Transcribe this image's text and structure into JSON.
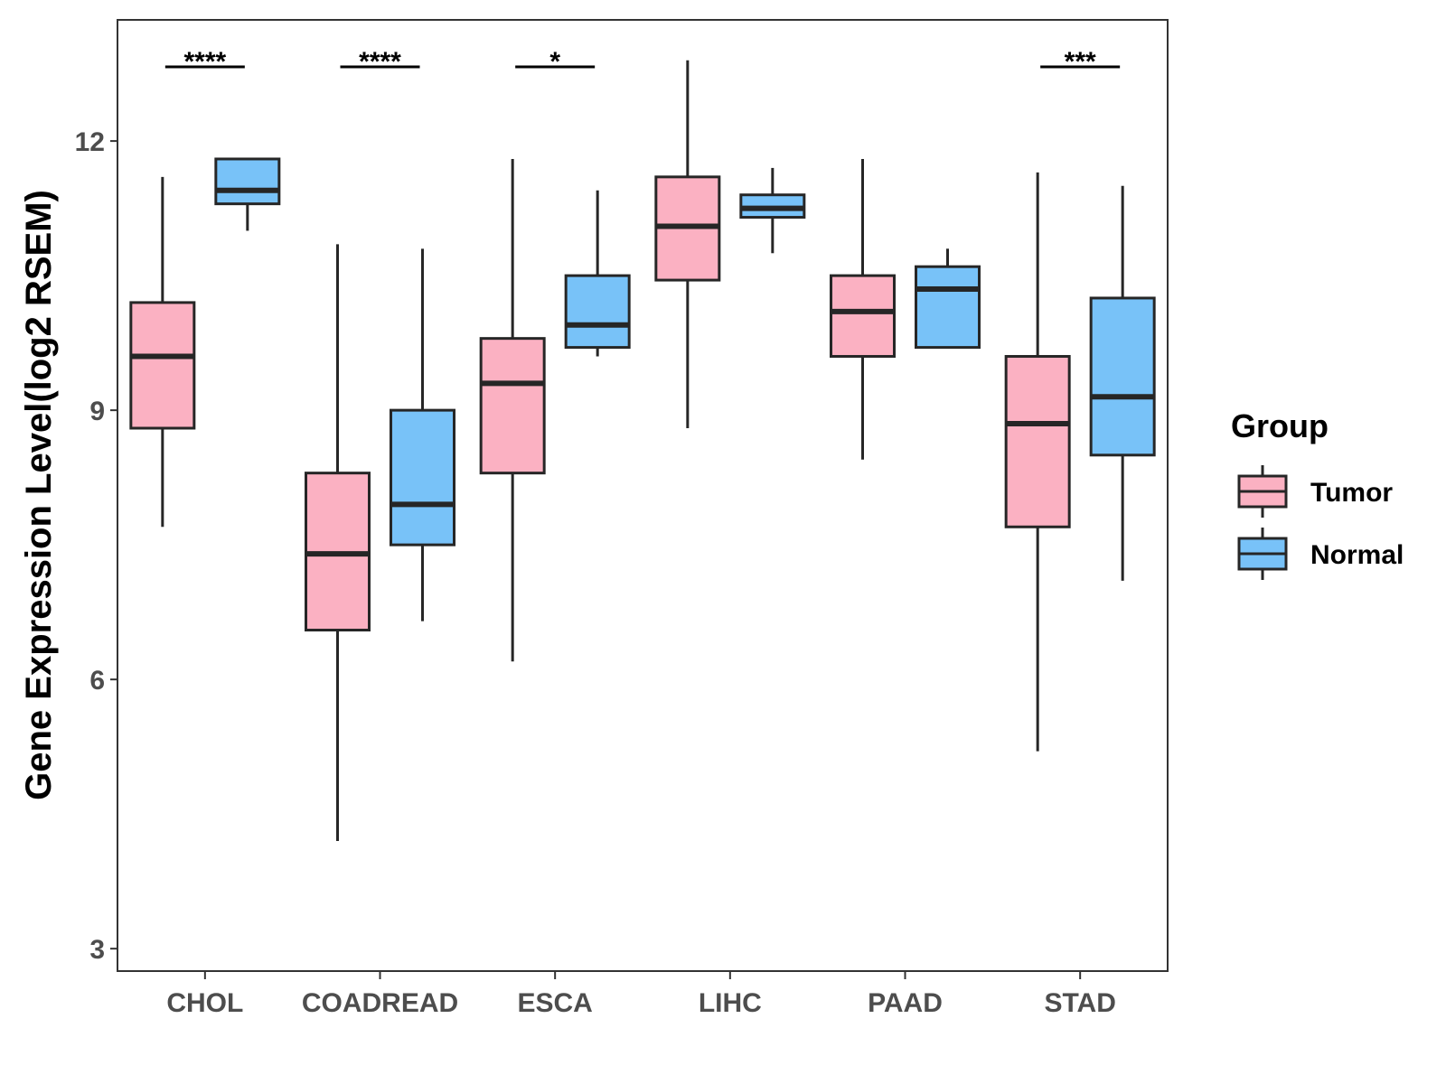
{
  "chart_data": {
    "type": "boxplot",
    "ylabel": "Gene Expression Level(log2 RSEM)",
    "xlabel": "",
    "ylim": [
      2.75,
      13.35
    ],
    "yticks": [
      3,
      6,
      9,
      12
    ],
    "categories": [
      "CHOL",
      "COADREAD",
      "ESCA",
      "LIHC",
      "PAAD",
      "STAD"
    ],
    "groups": [
      {
        "name": "Tumor",
        "color": "#FBB1C2"
      },
      {
        "name": "Normal",
        "color": "#78C2F8"
      }
    ],
    "series": [
      {
        "name": "Tumor",
        "boxes": [
          {
            "category": "CHOL",
            "min": 7.7,
            "q1": 8.8,
            "median": 9.6,
            "q3": 10.2,
            "max": 11.6
          },
          {
            "category": "COADREAD",
            "min": 4.2,
            "q1": 6.55,
            "median": 7.4,
            "q3": 8.3,
            "max": 10.85
          },
          {
            "category": "ESCA",
            "min": 6.2,
            "q1": 8.3,
            "median": 9.3,
            "q3": 9.8,
            "max": 11.8
          },
          {
            "category": "LIHC",
            "min": 8.8,
            "q1": 10.45,
            "median": 11.05,
            "q3": 11.6,
            "max": 12.9
          },
          {
            "category": "PAAD",
            "min": 8.45,
            "q1": 9.6,
            "median": 10.1,
            "q3": 10.5,
            "max": 11.8
          },
          {
            "category": "STAD",
            "min": 5.2,
            "q1": 7.7,
            "median": 8.85,
            "q3": 9.6,
            "max": 11.65
          }
        ]
      },
      {
        "name": "Normal",
        "boxes": [
          {
            "category": "CHOL",
            "min": 11.0,
            "q1": 11.3,
            "median": 11.45,
            "q3": 11.8,
            "max": 11.8
          },
          {
            "category": "COADREAD",
            "min": 6.65,
            "q1": 7.5,
            "median": 7.95,
            "q3": 9.0,
            "max": 10.8
          },
          {
            "category": "ESCA",
            "min": 9.6,
            "q1": 9.7,
            "median": 9.95,
            "q3": 10.5,
            "max": 11.45
          },
          {
            "category": "LIHC",
            "min": 10.75,
            "q1": 11.15,
            "median": 11.25,
            "q3": 11.4,
            "max": 11.7
          },
          {
            "category": "PAAD",
            "min": 9.7,
            "q1": 9.7,
            "median": 10.35,
            "q3": 10.6,
            "max": 10.8
          },
          {
            "category": "STAD",
            "min": 7.1,
            "q1": 8.5,
            "median": 9.15,
            "q3": 10.25,
            "max": 11.5
          }
        ]
      }
    ],
    "significance": [
      {
        "category": "CHOL",
        "label": "****"
      },
      {
        "category": "COADREAD",
        "label": "****"
      },
      {
        "category": "ESCA",
        "label": "*"
      },
      {
        "category": "LIHC",
        "label": ""
      },
      {
        "category": "PAAD",
        "label": ""
      },
      {
        "category": "STAD",
        "label": "***"
      }
    ],
    "legend": {
      "title": "Group",
      "position": "right"
    }
  }
}
